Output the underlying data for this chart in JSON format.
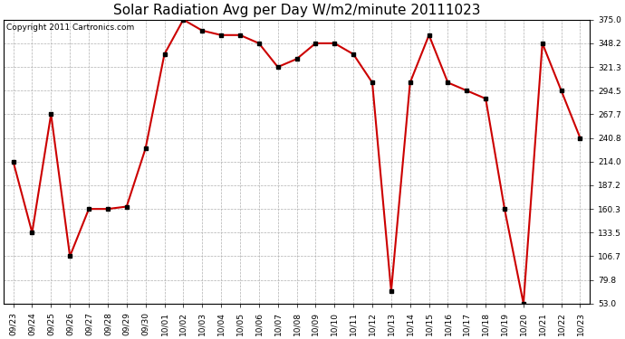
{
  "title": "Solar Radiation Avg per Day W/m2/minute 20111023",
  "copyright": "Copyright 2011 Cartronics.com",
  "dates": [
    "09/23",
    "09/24",
    "09/25",
    "09/26",
    "09/27",
    "09/28",
    "09/29",
    "09/30",
    "10/01",
    "10/02",
    "10/03",
    "10/04",
    "10/05",
    "10/06",
    "10/07",
    "10/08",
    "10/09",
    "10/10",
    "10/11",
    "10/12",
    "10/13",
    "10/14",
    "10/15",
    "10/16",
    "10/17",
    "10/18",
    "10/19",
    "10/20",
    "10/21",
    "10/22",
    "10/23"
  ],
  "values": [
    214.0,
    133.5,
    267.7,
    106.7,
    160.3,
    160.3,
    163.0,
    228.9,
    335.8,
    375.0,
    362.6,
    357.5,
    357.5,
    348.2,
    321.3,
    330.4,
    348.2,
    348.2,
    335.8,
    303.6,
    67.0,
    303.6,
    357.5,
    303.6,
    294.5,
    285.4,
    160.3,
    53.0,
    348.2,
    294.5,
    240.8
  ],
  "line_color": "#cc0000",
  "marker_color": "#000000",
  "background_color": "#ffffff",
  "grid_color": "#b0b0b0",
  "ylim": [
    53.0,
    375.0
  ],
  "yticks": [
    53.0,
    79.8,
    106.7,
    133.5,
    160.3,
    187.2,
    214.0,
    240.8,
    267.7,
    294.5,
    321.3,
    348.2,
    375.0
  ],
  "title_fontsize": 11,
  "tick_fontsize": 6.5,
  "copyright_fontsize": 6.5
}
